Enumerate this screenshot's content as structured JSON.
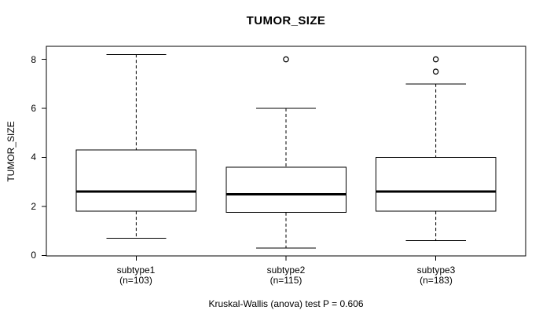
{
  "figure": {
    "background": "#ffffff",
    "line_color": "#000000"
  },
  "chart_data": {
    "type": "boxplot",
    "title": "TUMOR_SIZE",
    "ylabel": "TUMOR_SIZE",
    "xlabel": "",
    "caption": "Kruskal-Wallis (anova) test P = 0.606",
    "p_value": 0.606,
    "ylim": [
      -0.02,
      8.53
    ],
    "y_ticks": [
      0,
      2,
      4,
      6,
      8
    ],
    "grid": false,
    "legend": "none",
    "categories": [
      "subtype1",
      "subtype2",
      "subtype3"
    ],
    "groups": [
      {
        "label": "subtype1",
        "n_label": "(n=103)",
        "n": 103,
        "whisker_low": 0.7,
        "q1": 1.8,
        "median": 2.6,
        "q3": 4.3,
        "whisker_high": 8.2,
        "outliers": []
      },
      {
        "label": "subtype2",
        "n_label": "(n=115)",
        "n": 115,
        "whisker_low": 0.3,
        "q1": 1.75,
        "median": 2.5,
        "q3": 3.6,
        "whisker_high": 6.0,
        "outliers": [
          8.0
        ]
      },
      {
        "label": "subtype3",
        "n_label": "(n=183)",
        "n": 183,
        "whisker_low": 0.6,
        "q1": 1.8,
        "median": 2.6,
        "q3": 4.0,
        "whisker_high": 7.0,
        "outliers": [
          7.5,
          8.0
        ]
      }
    ]
  }
}
